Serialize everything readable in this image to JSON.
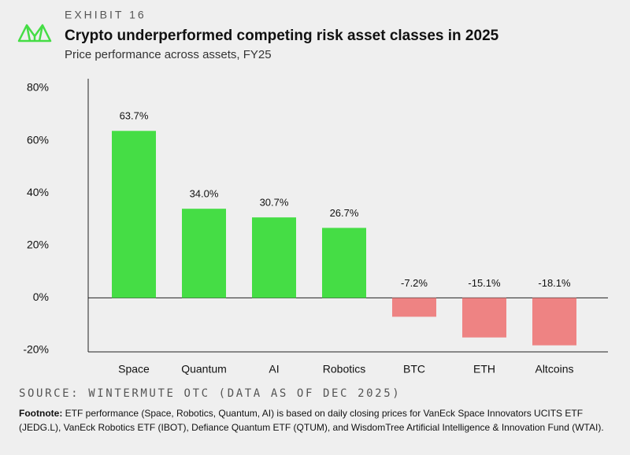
{
  "header": {
    "exhibit": "EXHIBIT 16",
    "title": "Crypto underperformed competing risk asset classes in 2025",
    "subtitle": "Price performance across assets, FY25"
  },
  "chart_data": {
    "type": "bar",
    "categories": [
      "Space",
      "Quantum",
      "AI",
      "Robotics",
      "BTC",
      "ETH",
      "Altcoins"
    ],
    "values": [
      63.7,
      34.0,
      30.7,
      26.7,
      -7.2,
      -15.1,
      -18.1
    ],
    "value_labels": [
      "63.7%",
      "34.0%",
      "30.7%",
      "26.7%",
      "-7.2%",
      "-15.1%",
      "-18.1%"
    ],
    "colors": [
      "#45dd45",
      "#45dd45",
      "#45dd45",
      "#45dd45",
      "#ee8383",
      "#ee8383",
      "#ee8383"
    ],
    "ylim": [
      -20,
      80
    ],
    "yticks": [
      {
        "value": -20,
        "label": "-20%"
      },
      {
        "value": 0,
        "label": "0%"
      },
      {
        "value": 20,
        "label": "20%"
      },
      {
        "value": 40,
        "label": "40%"
      },
      {
        "value": 60,
        "label": "60%"
      },
      {
        "value": 80,
        "label": "80%"
      }
    ]
  },
  "source": "SOURCE: WINTERMUTE OTC (DATA AS OF DEC 2025)",
  "footnote": {
    "label": "Footnote:",
    "text": "ETF performance (Space, Robotics, Quantum, AI) is based on daily closing prices for VanEck Space Innovators UCITS ETF (JEDG.L), VanEck Robotics ETF (IBOT), Defiance Quantum ETF (QTUM), and WisdomTree Artificial Intelligence & Innovation Fund (WTAI)."
  }
}
